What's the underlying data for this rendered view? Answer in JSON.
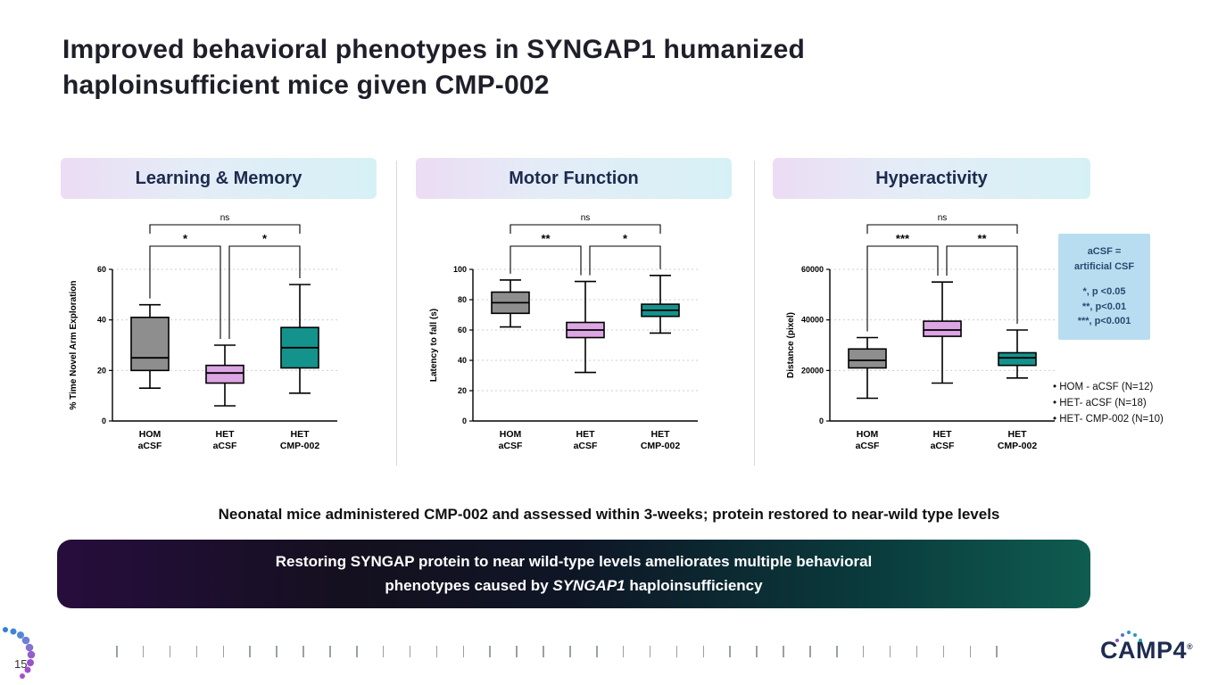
{
  "slide": {
    "title": "Improved behavioral phenotypes in SYNGAP1 humanized\nhaploinsufficient mice given CMP-002",
    "footnote": "Neonatal mice administered CMP-002 and assessed within 3-weeks; protein restored to near-wild type levels",
    "banner": {
      "line1": "Restoring SYNGAP protein to near wild-type levels ameliorates multiple behavioral",
      "line2_prefix": "phenotypes caused by ",
      "line2_italic": "SYNGAP1",
      "line2_suffix": " haploinsufficiency"
    },
    "page_number": "15",
    "logo_text": "CAMP4",
    "logo_reg": "®"
  },
  "legend_box": {
    "lines": [
      "aCSF =",
      "artificial CSF",
      "",
      "*, p <0.05",
      "**, p<0.01",
      "***, p<0.001"
    ]
  },
  "groups": [
    "HOM - aCSF (N=12)",
    "HET- aCSF (N=18)",
    "HET- CMP-002 (N=10)"
  ],
  "colors": {
    "box_gray": "#8e8e8e",
    "box_purple": "#dca5e3",
    "box_teal": "#14938d",
    "header_text": "#1c2b4d",
    "legend_bg": "#b9ddf0"
  },
  "chart_data": [
    {
      "type": "box",
      "title": "Learning & Memory",
      "ylabel": "% Time Novel Arm Exploration",
      "ylim": [
        0,
        60
      ],
      "yticks": [
        0,
        20,
        40,
        60
      ],
      "categories": [
        [
          "HOM",
          "aCSF"
        ],
        [
          "HET",
          "aCSF"
        ],
        [
          "HET",
          "CMP-002"
        ]
      ],
      "boxes": [
        {
          "label": "HOM aCSF",
          "low": 13,
          "q1": 20,
          "median": 25,
          "q3": 41,
          "high": 46,
          "color": "#8e8e8e"
        },
        {
          "label": "HET aCSF",
          "low": 6,
          "q1": 15,
          "median": 19,
          "q3": 22,
          "high": 30,
          "color": "#dca5e3"
        },
        {
          "label": "HET CMP-002",
          "low": 11,
          "q1": 21,
          "median": 29,
          "q3": 37,
          "high": 54,
          "color": "#14938d"
        }
      ],
      "significance": {
        "top": "ns",
        "pair12": "*",
        "pair23": "*"
      }
    },
    {
      "type": "box",
      "title": "Motor Function",
      "ylabel": "Latency to fall (s)",
      "ylim": [
        0,
        100
      ],
      "yticks": [
        0,
        20,
        40,
        60,
        80,
        100
      ],
      "categories": [
        [
          "HOM",
          "aCSF"
        ],
        [
          "HET",
          "aCSF"
        ],
        [
          "HET",
          "CMP-002"
        ]
      ],
      "boxes": [
        {
          "label": "HOM aCSF",
          "low": 62,
          "q1": 71,
          "median": 78,
          "q3": 85,
          "high": 93,
          "color": "#8e8e8e"
        },
        {
          "label": "HET aCSF",
          "low": 32,
          "q1": 55,
          "median": 60,
          "q3": 65,
          "high": 92,
          "color": "#dca5e3"
        },
        {
          "label": "HET CMP-002",
          "low": 58,
          "q1": 69,
          "median": 73,
          "q3": 77,
          "high": 96,
          "color": "#14938d"
        }
      ],
      "significance": {
        "top": "ns",
        "pair12": "**",
        "pair23": "*"
      }
    },
    {
      "type": "box",
      "title": "Hyperactivity",
      "ylabel": "Distance (pixel)",
      "ylim": [
        0,
        60000
      ],
      "yticks": [
        0,
        20000,
        40000,
        60000
      ],
      "categories": [
        [
          "HOM",
          "aCSF"
        ],
        [
          "HET",
          "aCSF"
        ],
        [
          "HET",
          "CMP-002"
        ]
      ],
      "boxes": [
        {
          "label": "HOM aCSF",
          "low": 9000,
          "q1": 21000,
          "median": 24000,
          "q3": 28500,
          "high": 33000,
          "color": "#8e8e8e"
        },
        {
          "label": "HET aCSF",
          "low": 15000,
          "q1": 33500,
          "median": 36000,
          "q3": 39500,
          "high": 55000,
          "color": "#dca5e3"
        },
        {
          "label": "HET CMP-002",
          "low": 17000,
          "q1": 22000,
          "median": 25000,
          "q3": 27000,
          "high": 36000,
          "color": "#14938d"
        }
      ],
      "significance": {
        "top": "ns",
        "pair12": "***",
        "pair23": "**"
      }
    }
  ]
}
